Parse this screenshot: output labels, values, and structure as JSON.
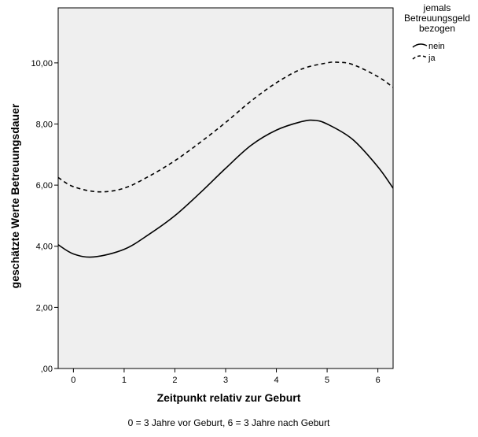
{
  "chart_data": {
    "type": "line",
    "xlabel": "Zeitpunkt relativ zur Geburt",
    "ylabel": "geschätzte Werte Betreuungsdauer",
    "note": "0 = 3 Jahre vor Geburt, 6 = 3 Jahre nach Geburt",
    "xlim": [
      -0.3,
      6.3
    ],
    "ylim": [
      0,
      11.8
    ],
    "x_ticks": [
      0,
      1,
      2,
      3,
      4,
      5,
      6
    ],
    "x_tick_labels": [
      "0",
      "1",
      "2",
      "3",
      "4",
      "5",
      "6"
    ],
    "y_ticks": [
      0,
      2,
      4,
      6,
      8,
      10
    ],
    "y_tick_labels": [
      ",00",
      "2,00",
      "4,00",
      "6,00",
      "8,00",
      "10,00"
    ],
    "legend": {
      "title_lines": [
        "jemals",
        "Betreuungsgeld",
        "bezogen"
      ],
      "placement": "top-right outside plot"
    },
    "plot_background": "#efefef",
    "series": [
      {
        "name": "nein",
        "style": "solid",
        "color": "#000000",
        "x": [
          -0.3,
          0.0,
          0.4,
          1.0,
          1.5,
          2.0,
          2.5,
          3.0,
          3.5,
          4.0,
          4.5,
          4.75,
          5.0,
          5.5,
          6.0,
          6.3
        ],
        "y": [
          4.05,
          3.75,
          3.65,
          3.9,
          4.4,
          5.0,
          5.75,
          6.55,
          7.3,
          7.8,
          8.08,
          8.12,
          8.0,
          7.5,
          6.6,
          5.9
        ]
      },
      {
        "name": "ja",
        "style": "dashed",
        "color": "#000000",
        "x": [
          -0.3,
          0.0,
          0.5,
          1.0,
          1.5,
          2.0,
          2.5,
          3.0,
          3.5,
          4.0,
          4.5,
          5.0,
          5.2,
          5.5,
          6.0,
          6.3
        ],
        "y": [
          6.25,
          5.95,
          5.78,
          5.9,
          6.3,
          6.8,
          7.4,
          8.05,
          8.75,
          9.35,
          9.8,
          10.0,
          10.02,
          9.95,
          9.55,
          9.2
        ]
      }
    ]
  }
}
